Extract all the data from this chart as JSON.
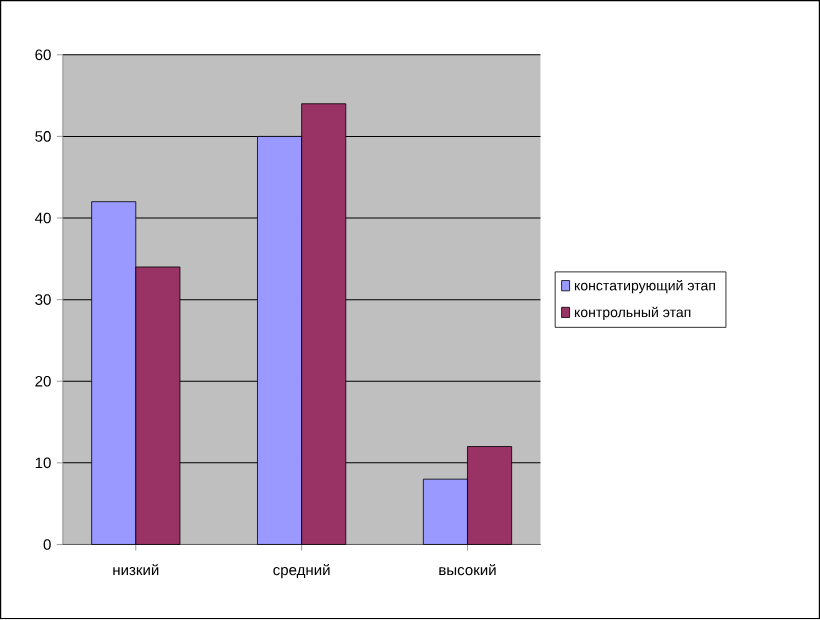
{
  "chart_data": {
    "type": "bar",
    "categories": [
      "низкий",
      "средний",
      "высокий"
    ],
    "series": [
      {
        "name": "констатирующий этап",
        "color": "#9999ff",
        "values": [
          42,
          50,
          8
        ]
      },
      {
        "name": "контрольный этап",
        "color": "#993366",
        "values": [
          34,
          54,
          12
        ]
      }
    ],
    "ylim": [
      0,
      60
    ],
    "yticks": [
      0,
      10,
      20,
      30,
      40,
      50,
      60
    ],
    "grid": "y",
    "legend": "right"
  }
}
